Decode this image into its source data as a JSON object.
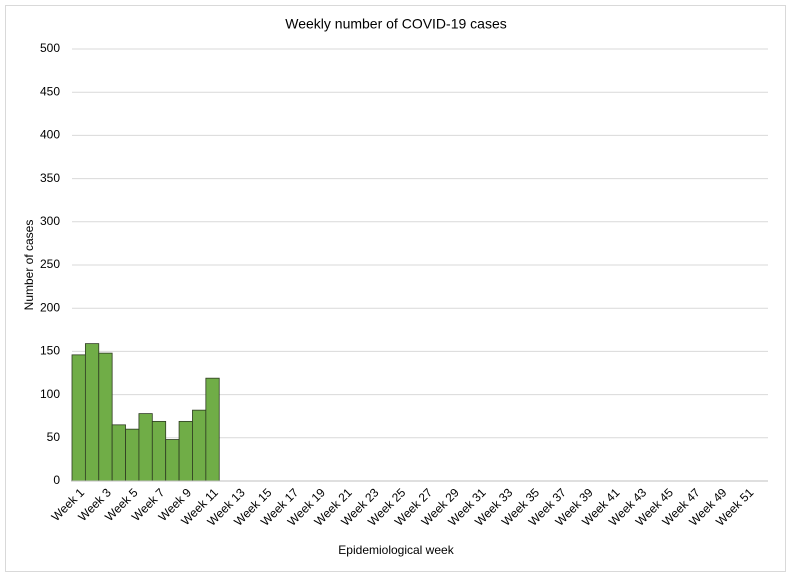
{
  "chart_data": {
    "type": "bar",
    "title": "Weekly number of COVID-19 cases",
    "x_label": "Epidemiological week",
    "y_label": "Number of cases",
    "categories": [
      "Week 1",
      null,
      "Week 3",
      null,
      "Week 5",
      null,
      "Week 7",
      null,
      "Week 9",
      null,
      "Week 11",
      null,
      "Week 13",
      null,
      "Week 15",
      null,
      "Week 17",
      null,
      "Week 19",
      null,
      "Week 21",
      null,
      "Week 23",
      null,
      "Week 25",
      null,
      "Week 27",
      null,
      "Week 29",
      null,
      "Week 31",
      null,
      "Week 33",
      null,
      "Week 35",
      null,
      "Week 37",
      null,
      "Week 39",
      null,
      "Week 41",
      null,
      "Week 43",
      null,
      "Week 45",
      null,
      "Week 47",
      null,
      "Week 49",
      null,
      "Week 51",
      null
    ],
    "values": [
      146,
      159,
      148,
      65,
      60,
      78,
      69,
      48,
      69,
      82,
      119,
      null,
      null,
      null,
      null,
      null,
      null,
      null,
      null,
      null,
      null,
      null,
      null,
      null,
      null,
      null,
      null,
      null,
      null,
      null,
      null,
      null,
      null,
      null,
      null,
      null,
      null,
      null,
      null,
      null,
      null,
      null,
      null,
      null,
      null,
      null,
      null,
      null,
      null,
      null,
      null,
      null
    ],
    "color": "#70ad47",
    "ylim": [
      0,
      500
    ],
    "yticks": [
      0,
      50,
      100,
      150,
      200,
      250,
      300,
      350,
      400,
      450,
      500
    ],
    "grid": true
  }
}
